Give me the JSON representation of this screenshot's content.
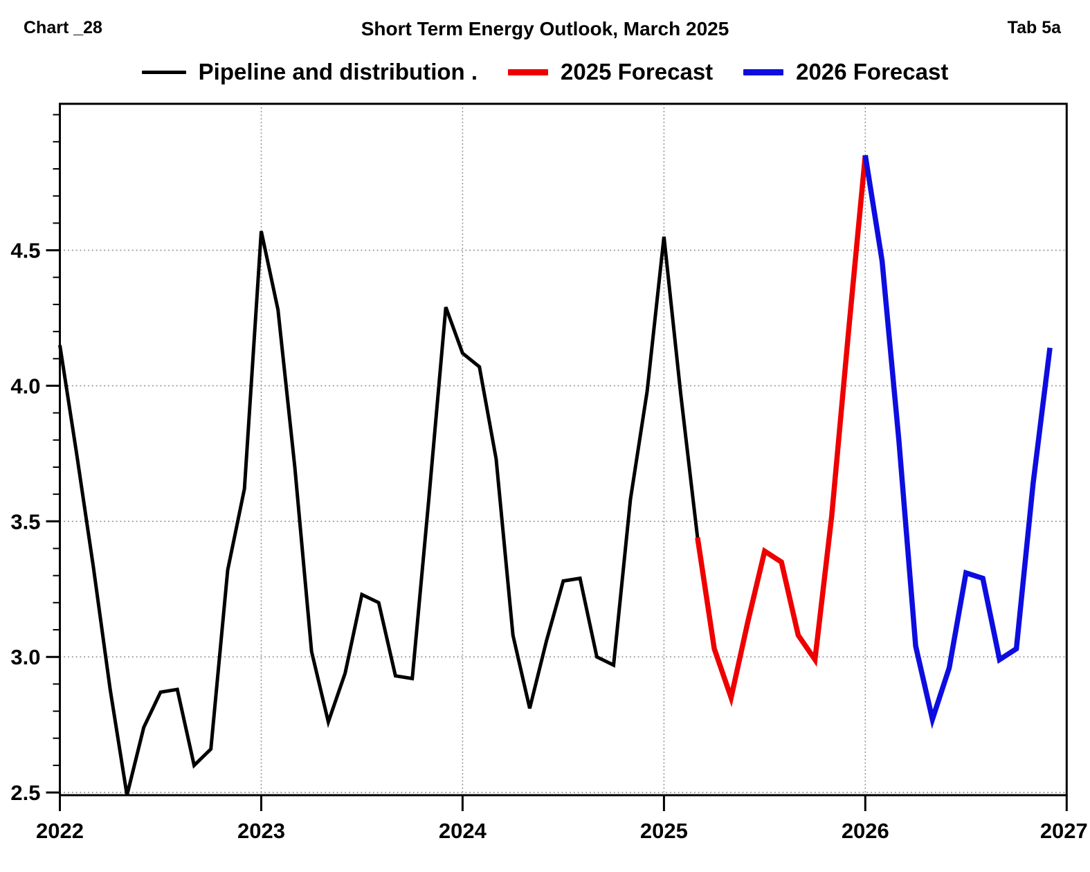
{
  "header": {
    "left_label": "Chart _28",
    "title": "Short Term Energy Outlook, March 2025",
    "right_label": "Tab 5a"
  },
  "legend": {
    "items": [
      {
        "label": "Pipeline and distribution .",
        "color": "#000000",
        "style": "thin"
      },
      {
        "label": "2025 Forecast",
        "color": "#ee0000",
        "style": "thick"
      },
      {
        "label": "2026 Forecast",
        "color": "#0d0de0",
        "style": "thick"
      }
    ]
  },
  "chart_data": {
    "type": "line",
    "title": "Short Term Energy Outlook, March 2025",
    "xlabel": "",
    "ylabel": "",
    "x_start": "2022-01",
    "x_months_total": 60,
    "x_tick_labels": [
      "2022",
      "2023",
      "2024",
      "2025",
      "2026",
      "2027"
    ],
    "x_tick_month_index": [
      0,
      12,
      24,
      36,
      48,
      60
    ],
    "y_ticks": [
      "2.5",
      "3.0",
      "3.5",
      "4.0",
      "4.5"
    ],
    "y_minor_tick_step": 0.1,
    "ylim": [
      2.49,
      5.04
    ],
    "grid": "dotted",
    "grid_color": "#8c8c8c",
    "legend_position": "top",
    "series": [
      {
        "name": "Pipeline and distribution",
        "color": "#000000",
        "line_width": 5,
        "start_month_index": 0,
        "start_label": "Jan 2022",
        "end_label": "Mar 2025",
        "values": [
          4.15,
          3.75,
          3.33,
          2.88,
          2.49,
          2.74,
          2.87,
          2.88,
          2.6,
          2.66,
          3.32,
          3.62,
          4.57,
          4.28,
          3.7,
          3.02,
          2.76,
          2.94,
          3.23,
          3.2,
          2.93,
          2.92,
          3.59,
          4.29,
          4.12,
          4.07,
          3.73,
          3.08,
          2.81,
          3.06,
          3.28,
          3.29,
          3.0,
          2.97,
          3.58,
          3.98,
          4.55,
          3.97,
          3.44
        ]
      },
      {
        "name": "2025 Forecast",
        "color": "#ee0000",
        "line_width": 7.5,
        "start_month_index": 38,
        "start_label": "Mar 2025",
        "end_label": "Jan 2026",
        "values": [
          3.44,
          3.03,
          2.85,
          3.13,
          3.39,
          3.35,
          3.08,
          2.99,
          3.52,
          4.2,
          4.85
        ]
      },
      {
        "name": "2026 Forecast",
        "color": "#0d0de0",
        "line_width": 7.5,
        "start_month_index": 48,
        "start_label": "Jan 2026",
        "end_label": "Dec 2026",
        "values": [
          4.85,
          4.46,
          3.8,
          3.04,
          2.77,
          2.96,
          3.31,
          3.29,
          2.99,
          3.03,
          3.64,
          4.14
        ]
      }
    ]
  }
}
